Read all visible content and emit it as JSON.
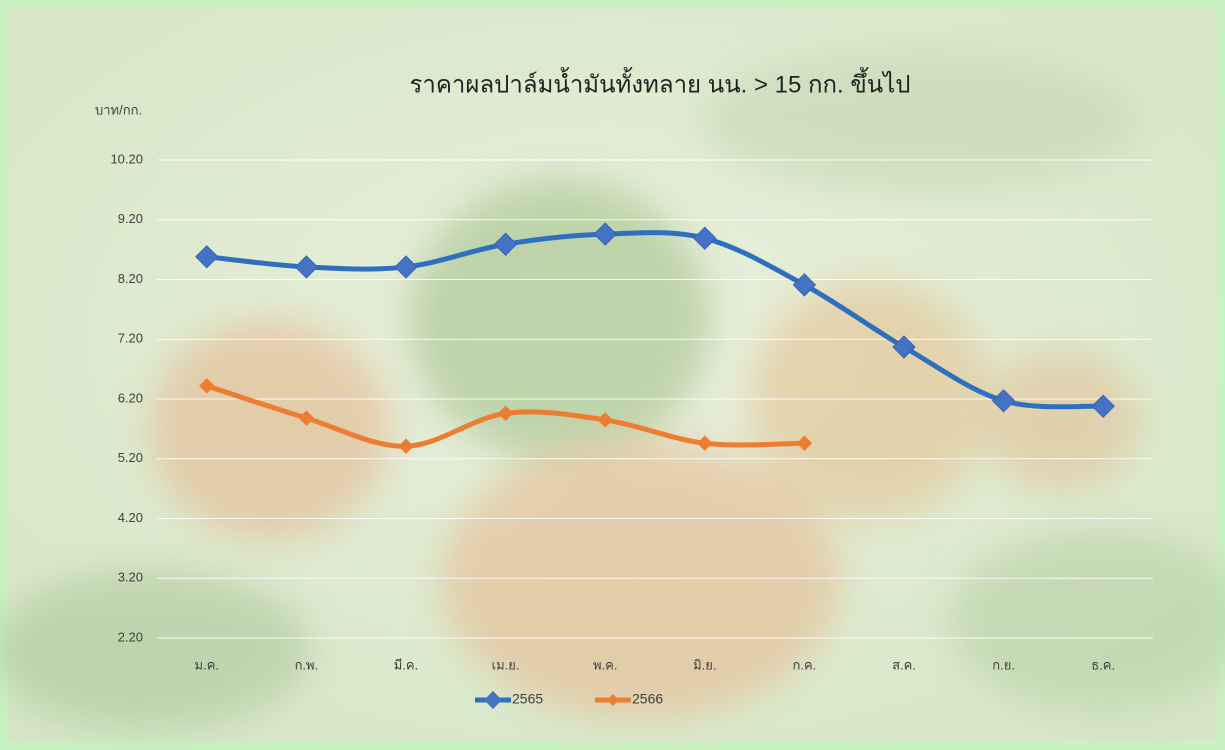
{
  "chart_data": {
    "type": "line",
    "title": "ราคาผลปาล์มน้ำมันทั้งทลาย นน. > 15 กก. ขึ้นไป",
    "y_label": "บาท/กก.",
    "categories": [
      "ม.ค.",
      "ก.พ.",
      "มี.ค.",
      "เม.ย.",
      "พ.ค.",
      "มิ.ย.",
      "ก.ค.",
      "ส.ค.",
      "ก.ย.",
      "ธ.ค."
    ],
    "series": [
      {
        "name": "2565",
        "color": "#2f6fbf",
        "values": [
          8.58,
          8.41,
          8.41,
          8.79,
          8.96,
          8.89,
          8.11,
          7.07,
          6.17,
          6.08
        ]
      },
      {
        "name": "2566",
        "color": "#ed7d31",
        "values": [
          6.42,
          5.88,
          5.41,
          5.96,
          5.85,
          5.46,
          5.46,
          null,
          null,
          null
        ]
      }
    ],
    "ylim": [
      2.2,
      10.2
    ],
    "yticks": [
      {
        "value": 2.2,
        "label": "2.20"
      },
      {
        "value": 3.2,
        "label": "3.20"
      },
      {
        "value": 4.2,
        "label": "4.20"
      },
      {
        "value": 5.2,
        "label": "5.20"
      },
      {
        "value": 6.2,
        "label": "6.20"
      },
      {
        "value": 7.2,
        "label": "7.20"
      },
      {
        "value": 8.2,
        "label": "8.20"
      },
      {
        "value": 9.2,
        "label": "9.20"
      },
      {
        "value": 10.2,
        "label": "10.20"
      }
    ],
    "grid": true
  }
}
